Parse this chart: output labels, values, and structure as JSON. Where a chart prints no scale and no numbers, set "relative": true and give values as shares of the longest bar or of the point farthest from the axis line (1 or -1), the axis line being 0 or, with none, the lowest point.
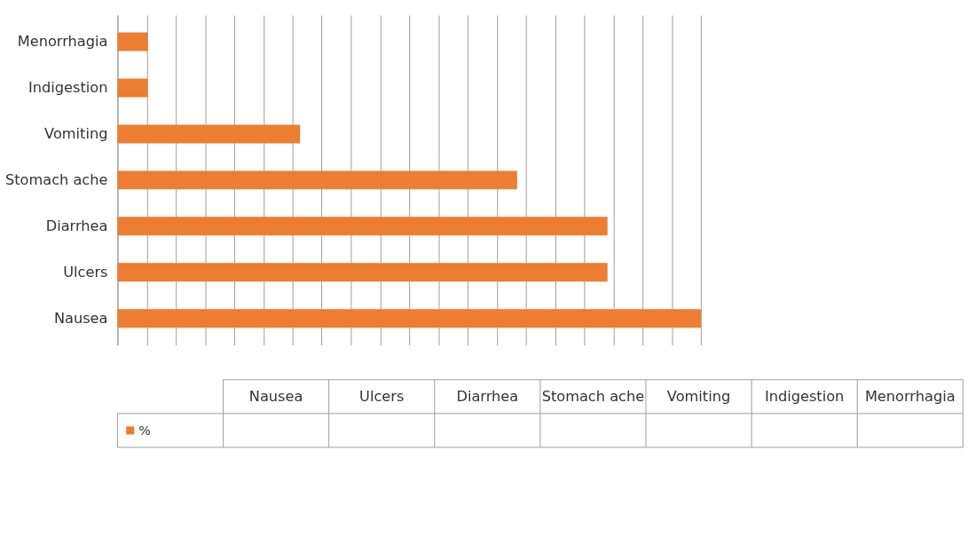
{
  "chart_data": {
    "type": "bar",
    "orientation": "horizontal",
    "relative": true,
    "categories": [
      "Menorrhagia",
      "Indigestion",
      "Vomiting",
      "Stomach ache",
      "Diarrhea",
      "Ulcers",
      "Nausea"
    ],
    "series": [
      {
        "name": "%",
        "color": "#ed7d31",
        "values": [
          0.052,
          0.052,
          0.313,
          0.685,
          0.84,
          0.84,
          1
        ]
      }
    ],
    "grid": "x",
    "legend": "bottom"
  }
}
